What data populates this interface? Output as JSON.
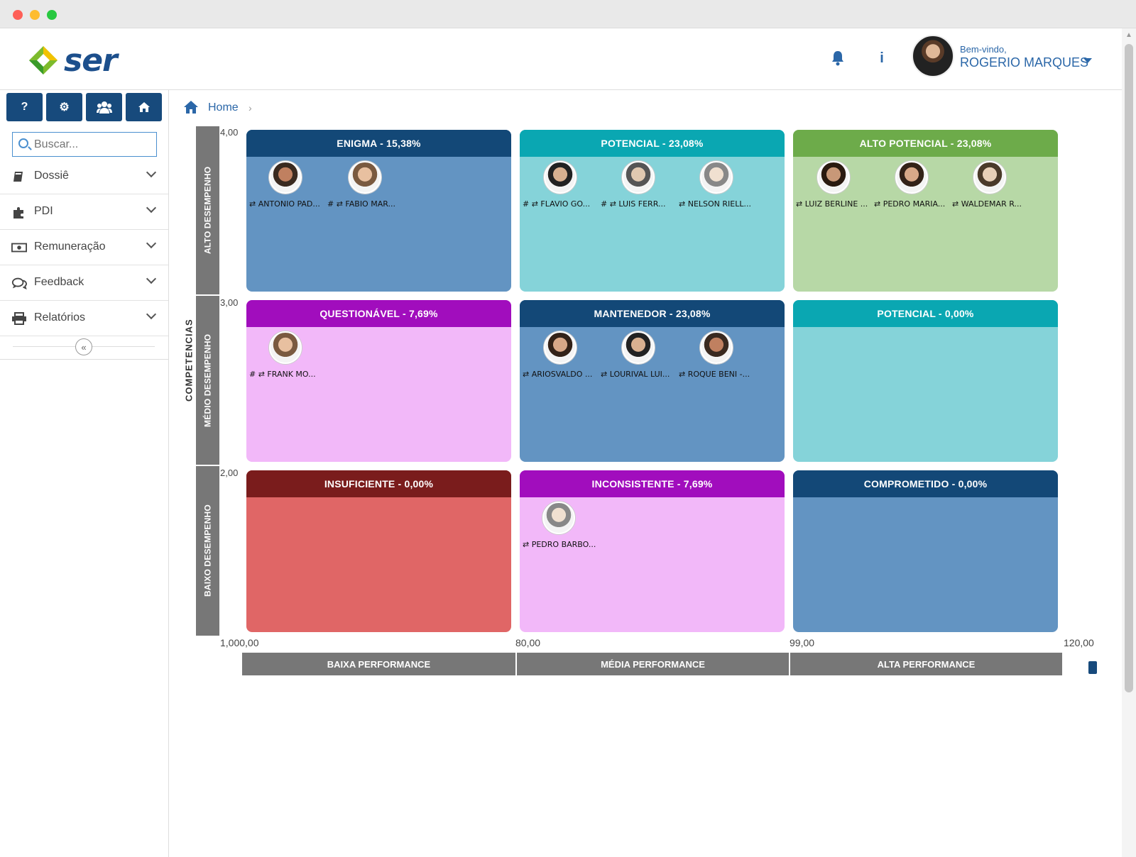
{
  "window": {
    "controls": [
      "close",
      "minimize",
      "maximize"
    ]
  },
  "header": {
    "logo_text": "ser",
    "bell_icon": "bell-icon",
    "info_icon": "info-icon",
    "info_glyph": "i",
    "welcome": "Bem-vindo,",
    "username": "ROGERIO MARQUES"
  },
  "sidebar": {
    "buttons": [
      {
        "icon": "question-icon",
        "glyph": "?"
      },
      {
        "icon": "gears-icon",
        "glyph": "⚙"
      },
      {
        "icon": "users-icon",
        "glyph": "👥"
      },
      {
        "icon": "home-icon",
        "glyph": "⌂"
      }
    ],
    "search_placeholder": "Buscar...",
    "menu": [
      {
        "label": "Dossiê",
        "icon": "book-icon",
        "glyph": "📘"
      },
      {
        "label": "PDI",
        "icon": "puzzle-icon",
        "glyph": "✚"
      },
      {
        "label": "Remuneração",
        "icon": "money-icon",
        "glyph": "💵"
      },
      {
        "label": "Feedback",
        "icon": "chat-icon",
        "glyph": "💬"
      },
      {
        "label": "Relatórios",
        "icon": "print-icon",
        "glyph": "🖨"
      }
    ],
    "collapse_glyph": "«"
  },
  "breadcrumb": {
    "home": "Home",
    "sep": "›"
  },
  "colors": {
    "navy": "#174a7c",
    "teal_head": "#0aa7b2",
    "teal_body": "#85d3d9",
    "green_head": "#6dab4a",
    "green_body": "#b7d8a6",
    "purple_head": "#a10dbd",
    "pink_body": "#f2b8f9",
    "darkred_head": "#7a1c1c",
    "red_body": "#e06666",
    "blue_body": "#6394c2",
    "navy_head": "#134877"
  },
  "chart_data": {
    "type": "table",
    "y_label": "COMPETENCIAS",
    "y_bands": [
      "ALTO DESEMPENHO",
      "MÉDIO DESEMPENHO",
      "BAIXO DESEMPENHO"
    ],
    "y_ticks": [
      "4,00",
      "3,00",
      "2,00"
    ],
    "x_ticks": [
      "1,000,00",
      "80,00",
      "99,00",
      "120,00"
    ],
    "x_bands": [
      "BAIXA PERFORMANCE",
      "MÉDIA PERFORMANCE",
      "ALTA PERFORMANCE"
    ],
    "cells": [
      {
        "row": 0,
        "col": 0,
        "title": "ENIGMA - 15,38%",
        "head": "#134877",
        "body": "#6394c2",
        "people": [
          {
            "name": "⇄ ANTONIO PAD...",
            "tone": "a"
          },
          {
            "name": "# ⇄ FABIO MAR...",
            "tone": "b"
          }
        ]
      },
      {
        "row": 0,
        "col": 1,
        "title": "POTENCIAL - 23,08%",
        "head": "#0aa7b2",
        "body": "#85d3d9",
        "people": [
          {
            "name": "# ⇄ FLAVIO GO...",
            "tone": "c"
          },
          {
            "name": "# ⇄ LUIS FERR...",
            "tone": "d"
          },
          {
            "name": "⇄ NELSON RIELL...",
            "tone": "e"
          }
        ]
      },
      {
        "row": 0,
        "col": 2,
        "title": "ALTO POTENCIAL - 23,08%",
        "head": "#6dab4a",
        "body": "#b7d8a6",
        "people": [
          {
            "name": "⇄ LUIZ BERLINE ...",
            "tone": "f"
          },
          {
            "name": "⇄ PEDRO MARIA...",
            "tone": "g"
          },
          {
            "name": "⇄ WALDEMAR R...",
            "tone": "h"
          }
        ]
      },
      {
        "row": 1,
        "col": 0,
        "title": "QUESTIONÁVEL - 7,69%",
        "head": "#a10dbd",
        "body": "#f2b8f9",
        "people": [
          {
            "name": "# ⇄ FRANK MO...",
            "tone": "b"
          }
        ]
      },
      {
        "row": 1,
        "col": 1,
        "title": "MANTENEDOR - 23,08%",
        "head": "#134877",
        "body": "#6394c2",
        "people": [
          {
            "name": "⇄ ARIOSVALDO ...",
            "tone": "g"
          },
          {
            "name": "⇄ LOURIVAL LUI...",
            "tone": "c"
          },
          {
            "name": "⇄ ROQUE BENI -...",
            "tone": "a"
          }
        ]
      },
      {
        "row": 1,
        "col": 2,
        "title": "POTENCIAL - 0,00%",
        "head": "#0aa7b2",
        "body": "#85d3d9",
        "people": []
      },
      {
        "row": 2,
        "col": 0,
        "title": "INSUFICIENTE - 0,00%",
        "head": "#7a1c1c",
        "body": "#e06666",
        "people": []
      },
      {
        "row": 2,
        "col": 1,
        "title": "INCONSISTENTE - 7,69%",
        "head": "#a10dbd",
        "body": "#f2b8f9",
        "people": [
          {
            "name": "⇄ PEDRO BARBO...",
            "tone": "e"
          }
        ]
      },
      {
        "row": 2,
        "col": 2,
        "title": "COMPROMETIDO - 0,00%",
        "head": "#134877",
        "body": "#6394c2",
        "people": []
      }
    ]
  }
}
